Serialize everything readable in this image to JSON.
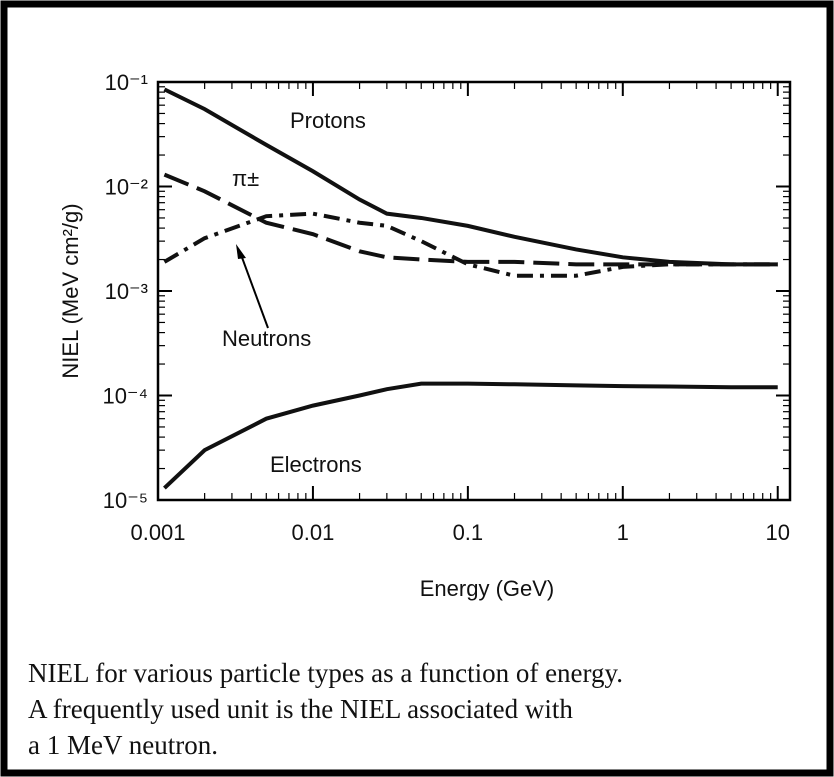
{
  "chart_data": {
    "type": "line",
    "x_label": "Energy (GeV)",
    "y_label": "NIEL (MeV cm²/g)",
    "x_log": true,
    "y_log": true,
    "xlim": [
      0.001,
      12
    ],
    "ylim": [
      1e-05,
      0.1
    ],
    "xticks": [
      0.001,
      0.01,
      0.1,
      1,
      10
    ],
    "yticks": [
      {
        "value": 0.1,
        "label": "10⁻¹"
      },
      {
        "value": 0.01,
        "label": "10⁻²"
      },
      {
        "value": 0.001,
        "label": "10⁻³"
      },
      {
        "value": 0.0001,
        "label": "10⁻⁴"
      },
      {
        "value": 1e-05,
        "label": "10⁻⁵"
      }
    ],
    "x": [
      0.0011,
      0.002,
      0.005,
      0.01,
      0.02,
      0.03,
      0.05,
      0.1,
      0.2,
      0.5,
      1,
      2,
      5,
      10
    ],
    "series": [
      {
        "name": "Protons",
        "color": "#111111",
        "dash": "solid",
        "values": [
          0.085,
          0.055,
          0.025,
          0.014,
          0.0075,
          0.0055,
          0.005,
          0.0042,
          0.0033,
          0.0025,
          0.0021,
          0.0019,
          0.0018,
          0.0018
        ]
      },
      {
        "name": "π±",
        "color": "#111111",
        "dash": "dashed",
        "values": [
          0.013,
          0.009,
          0.0045,
          0.0035,
          0.0024,
          0.0021,
          0.002,
          0.0019,
          0.0019,
          0.0018,
          0.0018,
          0.0018,
          0.0018,
          0.0018
        ]
      },
      {
        "name": "Neutrons",
        "color": "#111111",
        "dash": "dashdot",
        "values": [
          0.0019,
          0.0032,
          0.0052,
          0.0055,
          0.0045,
          0.0042,
          0.003,
          0.0018,
          0.0014,
          0.0014,
          0.0017,
          0.0018,
          0.0018,
          0.0018
        ]
      },
      {
        "name": "Electrons",
        "color": "#111111",
        "dash": "solid",
        "values": [
          1.3e-05,
          3e-05,
          6e-05,
          8e-05,
          0.0001,
          0.000115,
          0.00013,
          0.00013,
          0.000128,
          0.000125,
          0.000123,
          0.000122,
          0.00012,
          0.00012
        ]
      }
    ]
  },
  "caption": [
    "NIEL for various particle types as a function of energy.",
    "A frequently used unit is the NIEL associated with",
    "a 1 MeV neutron."
  ]
}
